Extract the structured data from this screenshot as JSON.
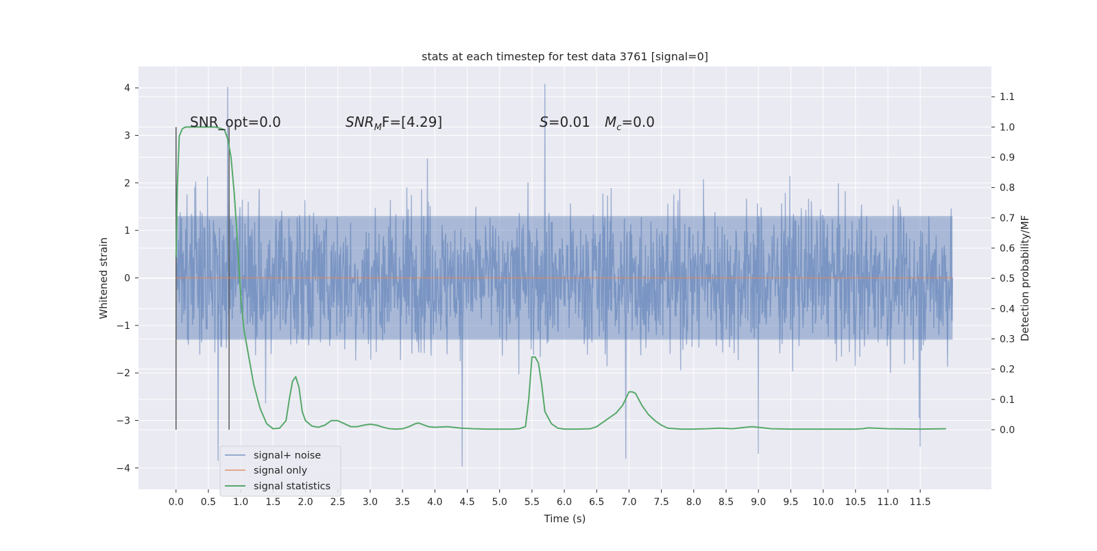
{
  "figure": {
    "title": "stats at each timestep for test data 3761 [signal=0]",
    "xlabel": "Time (s)",
    "ylabel_left": "Whitened strain",
    "ylabel_right": "Detection probability/MF"
  },
  "annotations": {
    "snr_opt": "SNR_opt=0.0",
    "snr_mf_name": "SNR",
    "snr_mf_sub": "M",
    "snr_mf_rest": "F=[4.29]",
    "s_name": "S",
    "s_rest": "=0.01",
    "mc_name": "M",
    "mc_sub": "c",
    "mc_rest": "=0.0"
  },
  "legend": {
    "noise": "signal+ noise",
    "signal": "signal only",
    "stats": "signal statistics"
  },
  "colors": {
    "background": "#eaeaf2",
    "grid": "#ffffff",
    "noise": "#4c72b0",
    "signal": "#dd8452",
    "stats": "#55a868",
    "marker": "#595959"
  },
  "chart_data": {
    "type": "line",
    "title": "stats at each timestep for test data 3761 [signal=0]",
    "xlabel": "Time (s)",
    "ylabel": "Whitened strain",
    "y2label": "Detection probability/MF",
    "xlim": [
      -0.58,
      12.6
    ],
    "ylim": [
      -4.45,
      4.45
    ],
    "y2lim": [
      -0.197,
      1.2
    ],
    "x_ticks": [
      "0.0",
      "0.5",
      "1.0",
      "1.5",
      "2.0",
      "2.5",
      "3.0",
      "3.5",
      "4.0",
      "4.5",
      "5.0",
      "5.5",
      "6.0",
      "6.5",
      "7.0",
      "7.5",
      "8.0",
      "8.5",
      "9.0",
      "9.5",
      "10.0",
      "10.5",
      "11.0",
      "11.5"
    ],
    "y_ticks": [
      "4",
      "3",
      "2",
      "1",
      "0",
      "−1",
      "−2",
      "−3",
      "−4"
    ],
    "y2_ticks": [
      "1.1",
      "1.0",
      "0.9",
      "0.8",
      "0.7",
      "0.6",
      "0.5",
      "0.4",
      "0.3",
      "0.2",
      "0.1",
      "0.0"
    ],
    "grid": true,
    "legend_position": "lower-left",
    "vertical_markers_x": [
      0.0,
      0.82
    ],
    "series": [
      {
        "name": "signal+ noise",
        "axis": "left",
        "kind": "noise",
        "x_range": [
          0.0,
          12.0
        ],
        "core_range": [
          -1.3,
          1.3
        ],
        "typical_extent": [
          -2.1,
          2.1
        ],
        "notable_peaks": [
          {
            "x": 0.8,
            "y": 4.02
          },
          {
            "x": 5.7,
            "y": 4.08
          },
          {
            "x": 4.42,
            "y": -3.97
          },
          {
            "x": 0.65,
            "y": -3.85
          },
          {
            "x": 6.95,
            "y": -3.8
          },
          {
            "x": 9.0,
            "y": -3.7
          },
          {
            "x": 11.5,
            "y": -3.55
          }
        ]
      },
      {
        "name": "signal only",
        "axis": "left",
        "x": [
          0.0,
          12.0
        ],
        "y": [
          0.0,
          0.0
        ]
      },
      {
        "name": "signal statistics",
        "axis": "right",
        "x": [
          0.0,
          0.02,
          0.05,
          0.1,
          0.15,
          0.2,
          0.3,
          0.4,
          0.5,
          0.6,
          0.7,
          0.75,
          0.8,
          0.85,
          0.9,
          0.95,
          1.0,
          1.05,
          1.1,
          1.15,
          1.2,
          1.3,
          1.4,
          1.5,
          1.6,
          1.7,
          1.75,
          1.8,
          1.85,
          1.9,
          1.95,
          2.0,
          2.1,
          2.2,
          2.3,
          2.4,
          2.5,
          2.6,
          2.7,
          2.8,
          2.9,
          3.0,
          3.1,
          3.2,
          3.3,
          3.4,
          3.5,
          3.6,
          3.7,
          3.75,
          3.8,
          3.9,
          4.0,
          4.2,
          4.4,
          4.6,
          4.8,
          5.0,
          5.2,
          5.3,
          5.4,
          5.45,
          5.5,
          5.55,
          5.6,
          5.65,
          5.7,
          5.8,
          5.9,
          6.0,
          6.2,
          6.4,
          6.5,
          6.6,
          6.7,
          6.8,
          6.9,
          7.0,
          7.05,
          7.1,
          7.2,
          7.3,
          7.4,
          7.5,
          7.6,
          7.8,
          8.0,
          8.2,
          8.4,
          8.6,
          8.8,
          8.9,
          9.0,
          9.2,
          9.5,
          10.0,
          10.5,
          10.6,
          10.7,
          10.8,
          11.0,
          11.5,
          11.9
        ],
        "y": [
          0.57,
          0.8,
          0.97,
          0.995,
          1.0,
          1.0,
          1.0,
          1.0,
          1.0,
          1.0,
          0.995,
          0.99,
          0.96,
          0.9,
          0.78,
          0.62,
          0.44,
          0.33,
          0.27,
          0.21,
          0.15,
          0.07,
          0.02,
          0.003,
          0.005,
          0.03,
          0.1,
          0.16,
          0.175,
          0.14,
          0.06,
          0.03,
          0.012,
          0.008,
          0.015,
          0.03,
          0.03,
          0.02,
          0.01,
          0.01,
          0.015,
          0.018,
          0.015,
          0.008,
          0.003,
          0.002,
          0.003,
          0.01,
          0.02,
          0.022,
          0.018,
          0.01,
          0.008,
          0.01,
          0.005,
          0.003,
          0.002,
          0.002,
          0.002,
          0.003,
          0.01,
          0.1,
          0.24,
          0.24,
          0.22,
          0.15,
          0.06,
          0.02,
          0.005,
          0.002,
          0.002,
          0.003,
          0.01,
          0.025,
          0.04,
          0.055,
          0.08,
          0.125,
          0.125,
          0.12,
          0.08,
          0.05,
          0.03,
          0.015,
          0.005,
          0.002,
          0.002,
          0.003,
          0.005,
          0.003,
          0.008,
          0.01,
          0.008,
          0.003,
          0.002,
          0.002,
          0.002,
          0.003,
          0.006,
          0.005,
          0.003,
          0.002,
          0.003
        ]
      }
    ]
  }
}
